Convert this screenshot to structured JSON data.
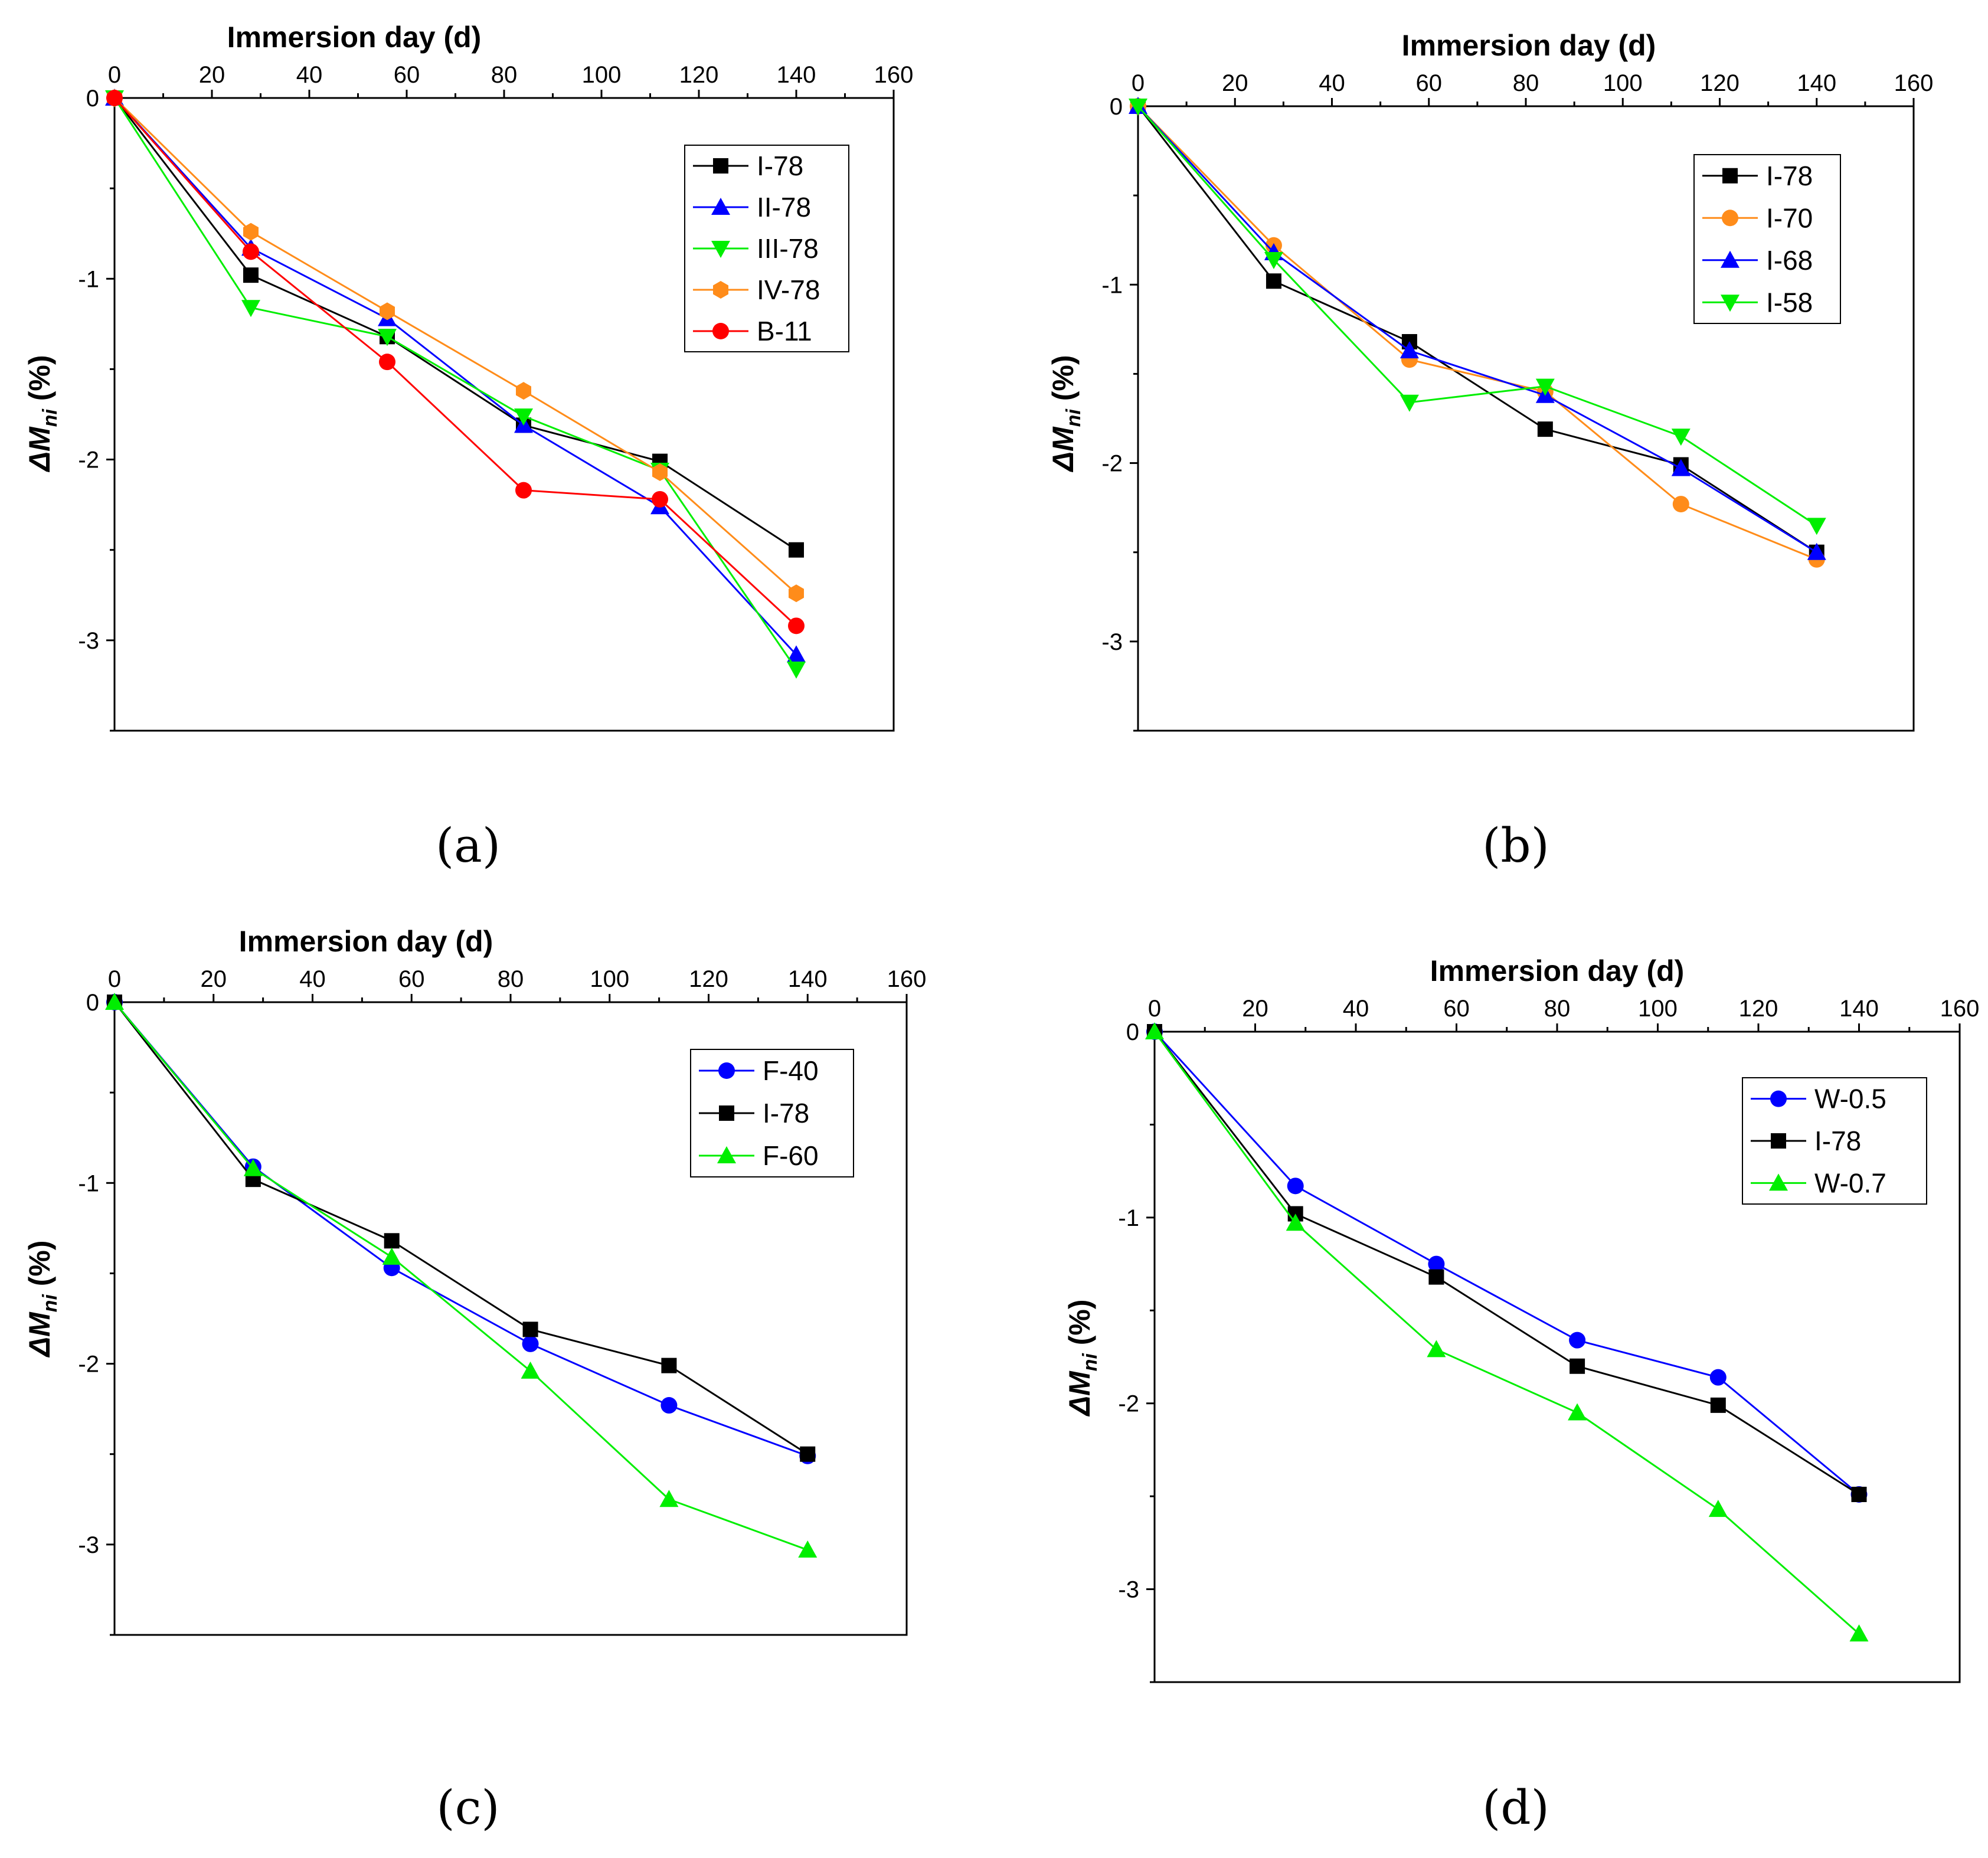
{
  "figure": {
    "panel_labels": [
      "(a)",
      "(b)",
      "(c)",
      "(d)"
    ]
  },
  "colors": {
    "black": "#000000",
    "blue": "#0000ff",
    "green": "#00ee00",
    "orange": "#ff8c1a",
    "red": "#ff0000"
  },
  "chart_data": [
    {
      "type": "line",
      "panel": "(a)",
      "xlabel": "Immersion day (d)",
      "ylabel_prefix": "ΔM",
      "ylabel_sub": "ni",
      "ylabel_suffix": " (%)",
      "xlim": [
        0,
        160
      ],
      "ylim": [
        -3.5,
        0
      ],
      "x_ticks": [
        0,
        20,
        40,
        60,
        80,
        100,
        120,
        140,
        160
      ],
      "y_ticks": [
        0,
        -1,
        -2,
        -3
      ],
      "x_tick_labels": [
        "0",
        "20",
        "40",
        "60",
        "80",
        "100",
        "120",
        "140",
        "160"
      ],
      "y_tick_labels": [
        "0",
        "-1",
        "-2",
        "-3"
      ],
      "legend_position": "top-right",
      "series": [
        {
          "name": "I-78",
          "color": "#000000",
          "marker": "square",
          "x": [
            0,
            28,
            56,
            84,
            112,
            140
          ],
          "y": [
            0,
            -0.98,
            -1.32,
            -1.81,
            -2.01,
            -2.5
          ]
        },
        {
          "name": "II-78",
          "color": "#0000ff",
          "marker": "triangle-up",
          "x": [
            0,
            28,
            56,
            84,
            112,
            140
          ],
          "y": [
            0,
            -0.83,
            -1.22,
            -1.81,
            -2.26,
            -3.08
          ]
        },
        {
          "name": "III-78",
          "color": "#00ee00",
          "marker": "triangle-down",
          "x": [
            0,
            28,
            56,
            84,
            112,
            140
          ],
          "y": [
            0,
            -1.16,
            -1.32,
            -1.76,
            -2.06,
            -3.16
          ]
        },
        {
          "name": "IV-78",
          "color": "#ff8c1a",
          "marker": "hexagon",
          "x": [
            0,
            28,
            56,
            84,
            112,
            140
          ],
          "y": [
            0,
            -0.74,
            -1.18,
            -1.62,
            -2.07,
            -2.74
          ]
        },
        {
          "name": "B-11",
          "color": "#ff0000",
          "marker": "circle",
          "x": [
            0,
            28,
            56,
            84,
            112,
            140
          ],
          "y": [
            0,
            -0.85,
            -1.46,
            -2.17,
            -2.22,
            -2.92
          ]
        }
      ]
    },
    {
      "type": "line",
      "panel": "(b)",
      "xlabel": "Immersion day (d)",
      "ylabel_prefix": "ΔM",
      "ylabel_sub": "ni",
      "ylabel_suffix": " (%)",
      "xlim": [
        0,
        160
      ],
      "ylim": [
        -3.5,
        0
      ],
      "x_ticks": [
        0,
        20,
        40,
        60,
        80,
        100,
        120,
        140,
        160
      ],
      "y_ticks": [
        0,
        -1,
        -2,
        -3
      ],
      "x_tick_labels": [
        "0",
        "20",
        "40",
        "60",
        "80",
        "100",
        "120",
        "140",
        "160"
      ],
      "y_tick_labels": [
        "0",
        "-1",
        "-2",
        "-3"
      ],
      "legend_position": "top-right",
      "series": [
        {
          "name": "I-78",
          "color": "#000000",
          "marker": "square",
          "x": [
            0,
            28,
            56,
            84,
            112,
            140
          ],
          "y": [
            0,
            -0.98,
            -1.32,
            -1.81,
            -2.01,
            -2.5
          ]
        },
        {
          "name": "I-70",
          "color": "#ff8c1a",
          "marker": "circle",
          "x": [
            0,
            28,
            56,
            84,
            112,
            140
          ],
          "y": [
            0,
            -0.78,
            -1.42,
            -1.6,
            -2.23,
            -2.54
          ]
        },
        {
          "name": "I-68",
          "color": "#0000ff",
          "marker": "triangle-up",
          "x": [
            0,
            28,
            56,
            84,
            112,
            140
          ],
          "y": [
            0,
            -0.82,
            -1.37,
            -1.62,
            -2.03,
            -2.5
          ]
        },
        {
          "name": "I-58",
          "color": "#00ee00",
          "marker": "triangle-down",
          "x": [
            0,
            28,
            56,
            84,
            112,
            140
          ],
          "y": [
            0,
            -0.86,
            -1.66,
            -1.57,
            -1.85,
            -2.35
          ]
        }
      ]
    },
    {
      "type": "line",
      "panel": "(c)",
      "xlabel": "Immersion day (d)",
      "ylabel_prefix": "ΔM",
      "ylabel_sub": "ni",
      "ylabel_suffix": " (%)",
      "xlim": [
        0,
        160
      ],
      "ylim": [
        -3.5,
        0
      ],
      "x_ticks": [
        0,
        20,
        40,
        60,
        80,
        100,
        120,
        140,
        160
      ],
      "y_ticks": [
        0,
        -1,
        -2,
        -3
      ],
      "x_tick_labels": [
        "0",
        "20",
        "40",
        "60",
        "80",
        "100",
        "120",
        "140",
        "160"
      ],
      "y_tick_labels": [
        "0",
        "-1",
        "-2",
        "-3"
      ],
      "legend_position": "top-right",
      "series": [
        {
          "name": "F-40",
          "color": "#0000ff",
          "marker": "circle",
          "x": [
            0,
            28,
            56,
            84,
            112,
            140
          ],
          "y": [
            0,
            -0.91,
            -1.47,
            -1.89,
            -2.23,
            -2.51
          ]
        },
        {
          "name": "I-78",
          "color": "#000000",
          "marker": "square",
          "x": [
            0,
            28,
            56,
            84,
            112,
            140
          ],
          "y": [
            0,
            -0.98,
            -1.32,
            -1.81,
            -2.01,
            -2.5
          ]
        },
        {
          "name": "F-60",
          "color": "#00ee00",
          "marker": "triangle-up",
          "x": [
            0,
            28,
            56,
            84,
            112,
            140
          ],
          "y": [
            0,
            -0.92,
            -1.41,
            -2.04,
            -2.75,
            -3.03
          ]
        }
      ]
    },
    {
      "type": "line",
      "panel": "(d)",
      "xlabel": "Immersion day (d)",
      "ylabel_prefix": "ΔM",
      "ylabel_sub": "ni",
      "ylabel_suffix": " (%)",
      "xlim": [
        0,
        160
      ],
      "ylim": [
        -3.5,
        0
      ],
      "x_ticks": [
        0,
        20,
        40,
        60,
        80,
        100,
        120,
        140,
        160
      ],
      "y_ticks": [
        0,
        -1,
        -2,
        -3
      ],
      "x_tick_labels": [
        "0",
        "20",
        "40",
        "60",
        "80",
        "100",
        "120",
        "140",
        "160"
      ],
      "y_tick_labels": [
        "0",
        "-1",
        "-2",
        "-3"
      ],
      "legend_position": "top-right",
      "series": [
        {
          "name": "W-0.5",
          "color": "#0000ff",
          "marker": "circle",
          "x": [
            0,
            28,
            56,
            84,
            112,
            140
          ],
          "y": [
            0,
            -0.83,
            -1.25,
            -1.66,
            -1.86,
            -2.49
          ]
        },
        {
          "name": "I-78",
          "color": "#000000",
          "marker": "square",
          "x": [
            0,
            28,
            56,
            84,
            112,
            140
          ],
          "y": [
            0,
            -0.98,
            -1.32,
            -1.8,
            -2.01,
            -2.49
          ]
        },
        {
          "name": "W-0.7",
          "color": "#00ee00",
          "marker": "triangle-up",
          "x": [
            0,
            28,
            56,
            84,
            112,
            140
          ],
          "y": [
            0,
            -1.03,
            -1.71,
            -2.05,
            -2.57,
            -3.24
          ]
        }
      ]
    }
  ]
}
